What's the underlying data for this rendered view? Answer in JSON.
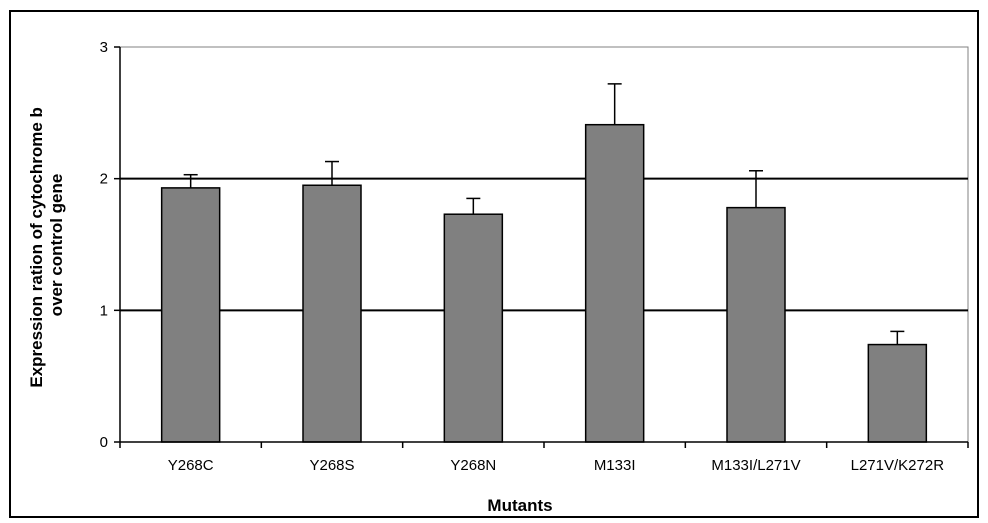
{
  "chart_data": {
    "type": "bar",
    "title": "",
    "xlabel": "Mutants",
    "ylabel": "Expression ration of cytochrome b over control gene",
    "ylabel_lines": [
      "Expression ration of cytochrome b",
      "over control gene"
    ],
    "categories": [
      "Y268C",
      "Y268S",
      "Y268N",
      "M133I",
      "M133I/L271V",
      "L271V/K272R"
    ],
    "values": [
      1.93,
      1.95,
      1.73,
      2.41,
      1.78,
      0.74
    ],
    "error": [
      0.1,
      0.18,
      0.12,
      0.31,
      0.28,
      0.1
    ],
    "ylim": [
      0,
      3
    ],
    "yticks": [
      0,
      1,
      2,
      3
    ],
    "grid": true,
    "bar_color": "#808080",
    "legend": "none"
  }
}
